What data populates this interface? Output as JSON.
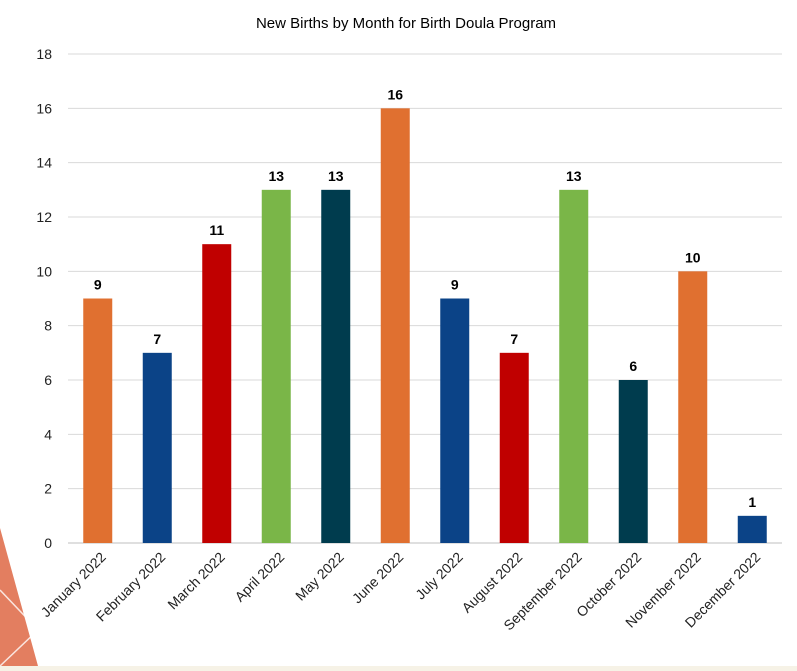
{
  "chart_data": {
    "type": "bar",
    "title": "New Births by Month for Birth Doula Program",
    "xlabel": "",
    "ylabel": "",
    "categories": [
      "January 2022",
      "February 2022",
      "March 2022",
      "April 2022",
      "May 2022",
      "June 2022",
      "July 2022",
      "August 2022",
      "September 2022",
      "October 2022",
      "November 2022",
      "December 2022"
    ],
    "values": [
      9,
      7,
      11,
      13,
      13,
      16,
      9,
      7,
      13,
      6,
      10,
      1
    ],
    "bar_colors": [
      "#e07030",
      "#0b4387",
      "#c00000",
      "#7ab648",
      "#003c4e",
      "#e07030",
      "#0b4387",
      "#c00000",
      "#7ab648",
      "#003c4e",
      "#e07030",
      "#0b4387"
    ],
    "y_ticks": [
      0,
      2,
      4,
      6,
      8,
      10,
      12,
      14,
      16,
      18
    ],
    "ylim": [
      0,
      18
    ],
    "grid": true,
    "legend": "none",
    "data_labels": true
  },
  "theme": {
    "page_background": "#f6f2e6",
    "accent_shape": "#e0704f",
    "grid_color": "#d9d9d9",
    "text_color": "#000000"
  }
}
